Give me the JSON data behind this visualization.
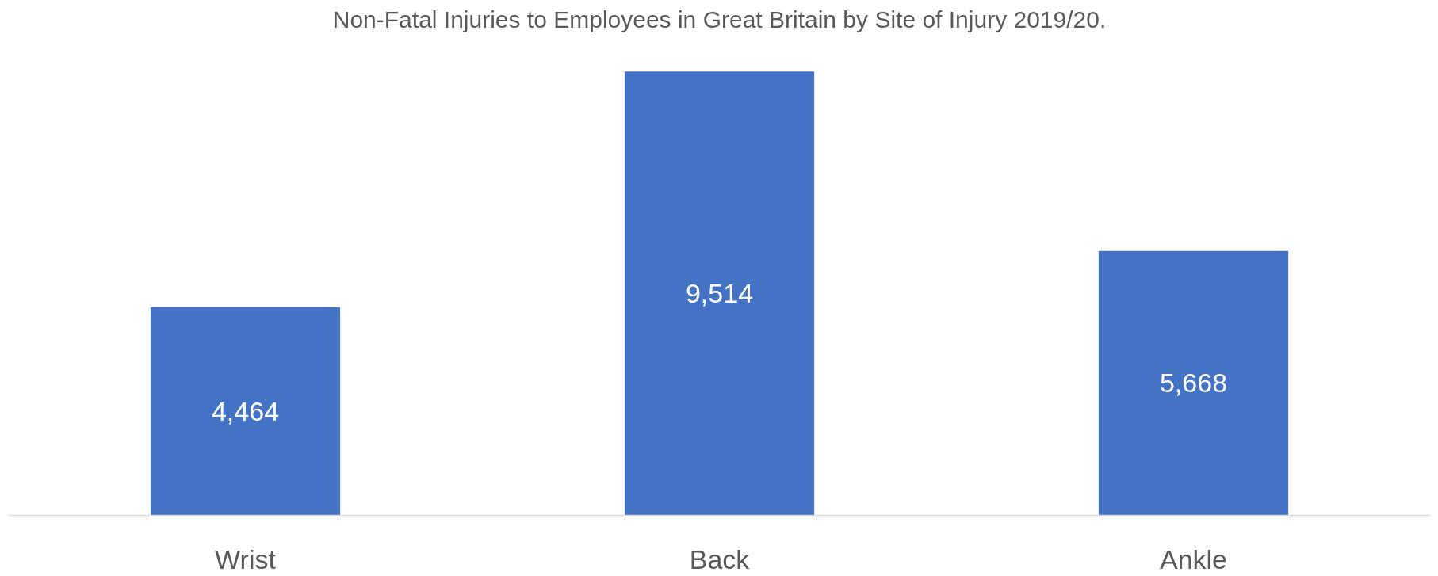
{
  "chart_data": {
    "type": "bar",
    "title": "Non-Fatal Injuries to Employees in Great Britain by Site of Injury 2019/20.",
    "categories": [
      "Wrist",
      "Back",
      "Ankle"
    ],
    "values": [
      4464,
      9514,
      5668
    ],
    "value_labels": [
      "4,464",
      "9,514",
      "5,668"
    ],
    "color": "#4472c4"
  }
}
